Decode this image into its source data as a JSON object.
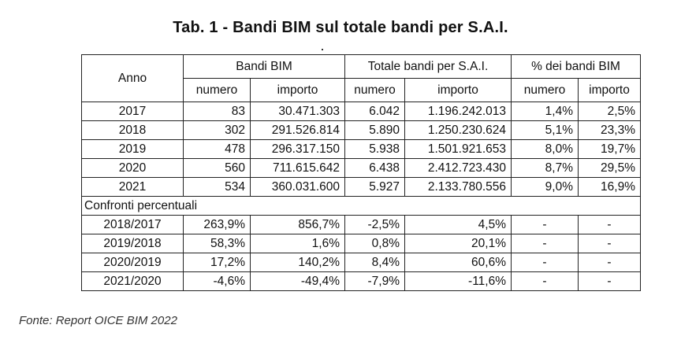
{
  "title": "Tab. 1 - Bandi BIM sul totale bandi per S.A.I.",
  "header": {
    "anno": "Anno",
    "group_bim": "Bandi BIM",
    "group_totale": "Totale bandi per S.A.I.",
    "group_pct": "% dei bandi BIM",
    "sub_numero": "numero",
    "sub_importo": "importo"
  },
  "rows": [
    {
      "anno": "2017",
      "c1": "83",
      "c2": "30.471.303",
      "c3": "6.042",
      "c4": "1.196.242.013",
      "c5": "1,4%",
      "c6": "2,5%"
    },
    {
      "anno": "2018",
      "c1": "302",
      "c2": "291.526.814",
      "c3": "5.890",
      "c4": "1.250.230.624",
      "c5": "5,1%",
      "c6": "23,3%"
    },
    {
      "anno": "2019",
      "c1": "478",
      "c2": "296.317.150",
      "c3": "5.938",
      "c4": "1.501.921.653",
      "c5": "8,0%",
      "c6": "19,7%"
    },
    {
      "anno": "2020",
      "c1": "560",
      "c2": "711.615.642",
      "c3": "6.438",
      "c4": "2.412.723.430",
      "c5": "8,7%",
      "c6": "29,5%"
    },
    {
      "anno": "2021",
      "c1": "534",
      "c2": "360.031.600",
      "c3": "5.927",
      "c4": "2.133.780.556",
      "c5": "9,0%",
      "c6": "16,9%"
    }
  ],
  "section_label": "Confronti percentuali",
  "comparisons": [
    {
      "anno": "2018/2017",
      "c1": "263,9%",
      "c2": "856,7%",
      "c3": "-2,5%",
      "c4": "4,5%",
      "c5": "-",
      "c6": "-"
    },
    {
      "anno": "2019/2018",
      "c1": "58,3%",
      "c2": "1,6%",
      "c3": "0,8%",
      "c4": "20,1%",
      "c5": "-",
      "c6": "-"
    },
    {
      "anno": "2020/2019",
      "c1": "17,2%",
      "c2": "140,2%",
      "c3": "8,4%",
      "c4": "60,6%",
      "c5": "-",
      "c6": "-"
    },
    {
      "anno": "2021/2020",
      "c1": "-4,6%",
      "c2": "-49,4%",
      "c3": "-7,9%",
      "c4": "-11,6%",
      "c5": "-",
      "c6": "-"
    }
  ],
  "footer": "Fonte: Report OICE BIM 2022"
}
